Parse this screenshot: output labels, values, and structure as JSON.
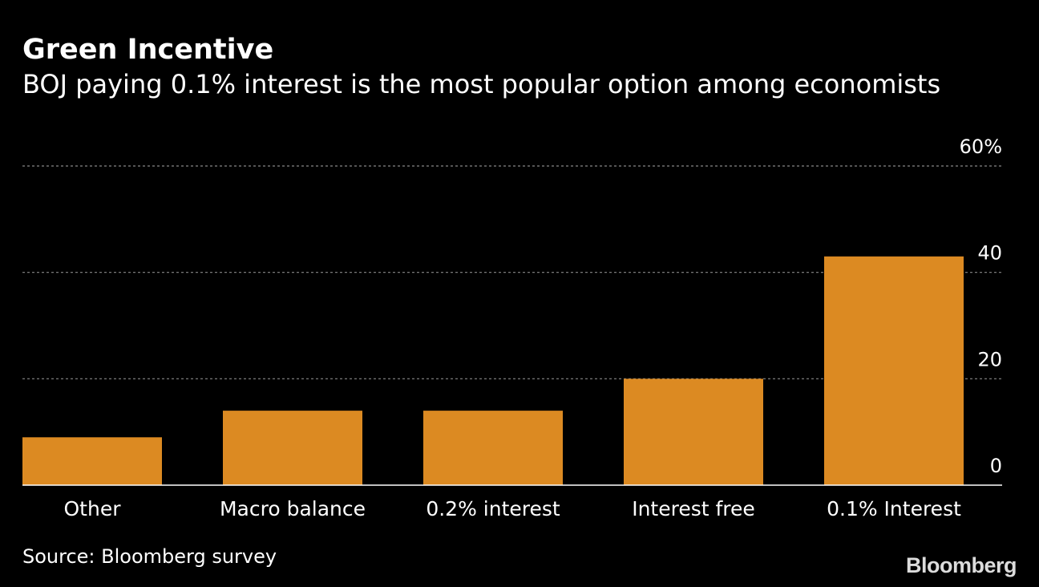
{
  "title": "Green Incentive",
  "subtitle": "BOJ paying 0.1% interest is the most popular option among economists",
  "source": "Source: Bloomberg survey",
  "logo": "Bloomberg",
  "colors": {
    "bar": "#dc8a22",
    "background": "#000000",
    "text": "#ffffff",
    "grid": "#888888"
  },
  "chart_data": {
    "type": "bar",
    "categories": [
      "Other",
      "Macro balance",
      "0.2% interest",
      "Interest free",
      "0.1% Interest"
    ],
    "values": [
      9,
      14,
      14,
      20,
      43
    ],
    "ylim": [
      0,
      60
    ],
    "yticks": [
      0,
      20,
      40,
      60
    ],
    "ytick_labels": [
      "0",
      "20",
      "40",
      "60%"
    ],
    "xlabel": "",
    "ylabel": "",
    "grid": true,
    "y_axis_position": "right"
  }
}
